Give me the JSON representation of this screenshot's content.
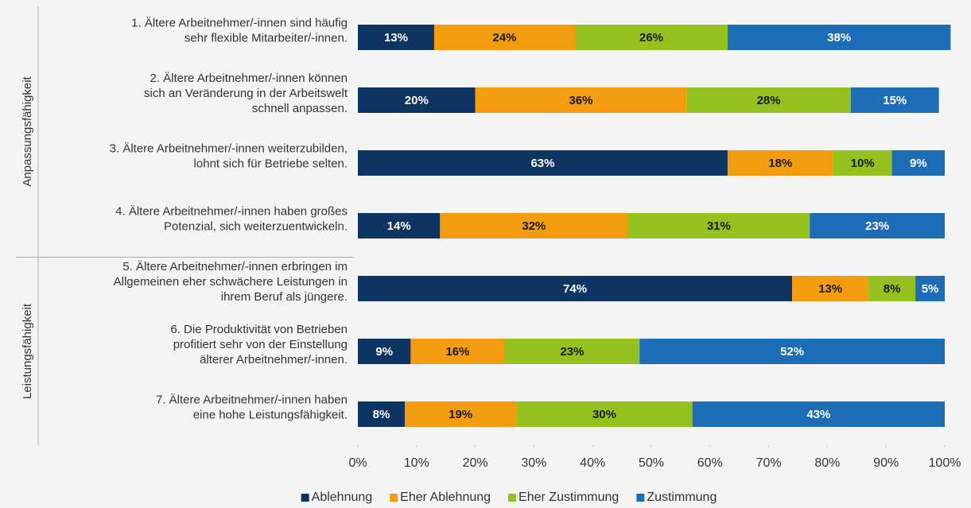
{
  "chart_data": {
    "type": "stacked_bar_horizontal",
    "groups": [
      "Anpassungsfähigkeit",
      "Leistungsfähigkeit"
    ],
    "categories": [
      [
        "1. Ältere Arbeitnehmer/-innen sind häufig",
        "sehr flexible Mitarbeiter/-innen."
      ],
      [
        "2. Ältere Arbeitnehmer/-innen können",
        "sich an Veränderung in der Arbeitswelt",
        "schnell anpassen."
      ],
      [
        "3. Ältere Arbeitnehmer/-innen weiterzubilden,",
        "lohnt sich für Betriebe selten."
      ],
      [
        "4. Ältere Arbeitnehmer/-innen haben großes",
        "Potenzial, sich weiterzuentwickeln."
      ],
      [
        "5. Ältere Arbeitnehmer/-innen erbringen im",
        "Allgemeinen eher schwächere Leistungen in",
        "ihrem Beruf als jüngere."
      ],
      [
        "6. Die Produktivität von Betrieben",
        "profitiert sehr von der Einstellung",
        "älterer Arbeitnehmer/-innen."
      ],
      [
        "7. Ältere Arbeitnehmer/-innen haben",
        "eine hohe Leistungsfähigkeit."
      ]
    ],
    "series": [
      {
        "name": "Ablehnung",
        "color": "#0e3461",
        "label_color": "#ffffff",
        "values": [
          13,
          20,
          63,
          14,
          74,
          9,
          8
        ],
        "value_labels": [
          "13%",
          "20%",
          "63%",
          "14%",
          "74%",
          "9%",
          "8%"
        ]
      },
      {
        "name": "Eher Ablehnung",
        "color": "#f39c0f",
        "label_color": "#1a1a1a",
        "values": [
          24,
          36,
          18,
          32,
          13,
          16,
          19
        ],
        "value_labels": [
          "24%",
          "36%",
          "18%",
          "32%",
          "13%",
          "16%",
          "19%"
        ]
      },
      {
        "name": "Eher Zustimmung",
        "color": "#95c11f",
        "label_color": "#1a1a1a",
        "values": [
          26,
          28,
          10,
          31,
          8,
          23,
          30
        ],
        "value_labels": [
          "26%",
          "28%",
          "10%",
          "31%",
          "8%",
          "23%",
          "30%"
        ]
      },
      {
        "name": "Zustimmung",
        "color": "#1c6db5",
        "label_color": "#ffffff",
        "values": [
          38,
          15,
          9,
          23,
          5,
          52,
          43
        ],
        "value_labels": [
          "38%",
          "15%",
          "9%",
          "23%",
          "5%",
          "52%",
          "43%"
        ]
      }
    ],
    "xlim": [
      0,
      100
    ],
    "xticks": [
      {
        "value": 0,
        "label": "0%"
      },
      {
        "value": 10,
        "label": "10%"
      },
      {
        "value": 20,
        "label": "20%"
      },
      {
        "value": 30,
        "label": "30%"
      },
      {
        "value": 40,
        "label": "40%"
      },
      {
        "value": 50,
        "label": "50%"
      },
      {
        "value": 60,
        "label": "60%"
      },
      {
        "value": 70,
        "label": "70%"
      },
      {
        "value": 80,
        "label": "80%"
      },
      {
        "value": 90,
        "label": "90%"
      },
      {
        "value": 100,
        "label": "100%"
      }
    ],
    "grid": false,
    "legend": "bottom"
  }
}
